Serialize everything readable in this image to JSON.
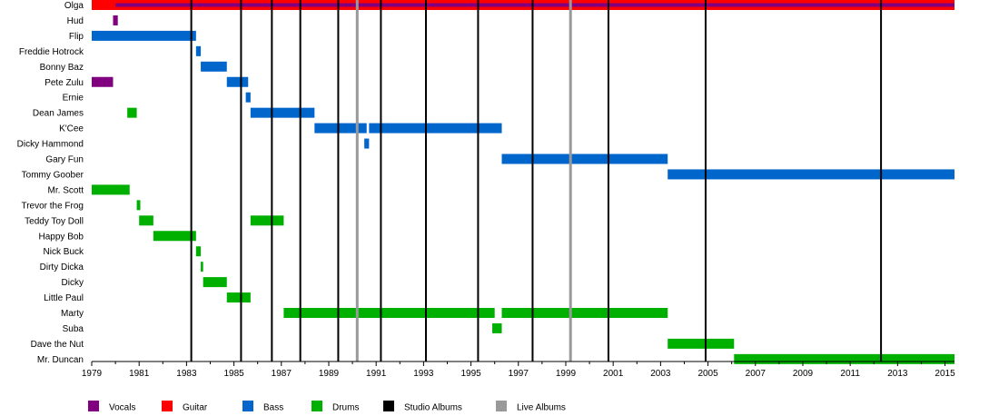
{
  "chart_data": {
    "type": "timeline",
    "members": [
      "Olga",
      "Hud",
      "Flip",
      "Freddie Hotrock",
      "Bonny Baz",
      "Pete Zulu",
      "Ernie",
      "Dean James",
      "K'Cee",
      "Dicky Hammond",
      "Gary Fun",
      "Tommy Goober",
      "Mr. Scott",
      "Trevor the Frog",
      "Teddy Toy Doll",
      "Happy Bob",
      "Nick Buck",
      "Dirty Dicka",
      "Dicky",
      "Little Paul",
      "Marty",
      "Suba",
      "Dave the Nut",
      "Mr. Duncan"
    ],
    "roles": {
      "Vocals": "#800080",
      "Guitar": "#ff0000",
      "Bass": "#0066cc",
      "Drums": "#00b000",
      "Studio Albums": "#000000",
      "Live Albums": "#999999"
    },
    "xlim": [
      1979,
      2015.4
    ],
    "x_ticks": [
      1979,
      1981,
      1983,
      1985,
      1987,
      1989,
      1991,
      1993,
      1995,
      1997,
      1999,
      2001,
      2003,
      2005,
      2007,
      2009,
      2011,
      2013,
      2015
    ],
    "bars": [
      {
        "member": "Olga",
        "role": "Guitar",
        "start": 1979.0,
        "end": 2015.4
      },
      {
        "member": "Olga",
        "role": "Vocals",
        "start": 1980.0,
        "end": 2015.4
      },
      {
        "member": "Hud",
        "role": "Vocals",
        "start": 1979.9,
        "end": 1980.1
      },
      {
        "member": "Flip",
        "role": "Bass",
        "start": 1979.0,
        "end": 1983.4
      },
      {
        "member": "Freddie Hotrock",
        "role": "Bass",
        "start": 1983.4,
        "end": 1983.6
      },
      {
        "member": "Bonny Baz",
        "role": "Bass",
        "start": 1983.6,
        "end": 1984.7
      },
      {
        "member": "Pete Zulu",
        "role": "Vocals",
        "start": 1979.0,
        "end": 1979.9
      },
      {
        "member": "Pete Zulu",
        "role": "Bass",
        "start": 1984.7,
        "end": 1985.6
      },
      {
        "member": "Ernie",
        "role": "Bass",
        "start": 1985.5,
        "end": 1985.7
      },
      {
        "member": "Dean James",
        "role": "Drums",
        "start": 1980.5,
        "end": 1980.9
      },
      {
        "member": "Dean James",
        "role": "Bass",
        "start": 1985.7,
        "end": 1988.4
      },
      {
        "member": "K'Cee",
        "role": "Bass",
        "start": 1988.4,
        "end": 1990.6
      },
      {
        "member": "K'Cee",
        "role": "Bass",
        "start": 1990.7,
        "end": 1996.3
      },
      {
        "member": "Dicky Hammond",
        "role": "Bass",
        "start": 1990.5,
        "end": 1990.7
      },
      {
        "member": "Gary Fun",
        "role": "Bass",
        "start": 1996.3,
        "end": 2003.3
      },
      {
        "member": "Tommy Goober",
        "role": "Bass",
        "start": 2003.3,
        "end": 2015.4
      },
      {
        "member": "Mr. Scott",
        "role": "Drums",
        "start": 1979.0,
        "end": 1980.6
      },
      {
        "member": "Trevor the Frog",
        "role": "Drums",
        "start": 1980.9,
        "end": 1981.05
      },
      {
        "member": "Teddy Toy Doll",
        "role": "Drums",
        "start": 1981.0,
        "end": 1981.6
      },
      {
        "member": "Teddy Toy Doll",
        "role": "Drums",
        "start": 1985.7,
        "end": 1987.1
      },
      {
        "member": "Happy Bob",
        "role": "Drums",
        "start": 1981.6,
        "end": 1983.4
      },
      {
        "member": "Nick Buck",
        "role": "Drums",
        "start": 1983.4,
        "end": 1983.6
      },
      {
        "member": "Dirty Dicka",
        "role": "Drums",
        "start": 1983.6,
        "end": 1983.7
      },
      {
        "member": "Dicky",
        "role": "Drums",
        "start": 1983.7,
        "end": 1984.7
      },
      {
        "member": "Little Paul",
        "role": "Drums",
        "start": 1984.7,
        "end": 1985.7
      },
      {
        "member": "Marty",
        "role": "Drums",
        "start": 1987.1,
        "end": 1996.0
      },
      {
        "member": "Marty",
        "role": "Drums",
        "start": 1996.3,
        "end": 2003.3
      },
      {
        "member": "Suba",
        "role": "Drums",
        "start": 1995.9,
        "end": 1996.3
      },
      {
        "member": "Dave the Nut",
        "role": "Drums",
        "start": 2003.3,
        "end": 2006.1
      },
      {
        "member": "Mr. Duncan",
        "role": "Drums",
        "start": 2006.1,
        "end": 2015.4
      }
    ],
    "studio_albums": [
      1983.2,
      1985.3,
      1986.6,
      1987.8,
      1989.4,
      1991.2,
      1993.1,
      1995.3,
      1997.6,
      2000.8,
      2004.9,
      2012.3
    ],
    "live_albums": [
      1990.2,
      1999.2
    ],
    "legend": [
      "Vocals",
      "Guitar",
      "Bass",
      "Drums",
      "Studio Albums",
      "Live Albums"
    ],
    "legend_position": "bottom-left"
  }
}
